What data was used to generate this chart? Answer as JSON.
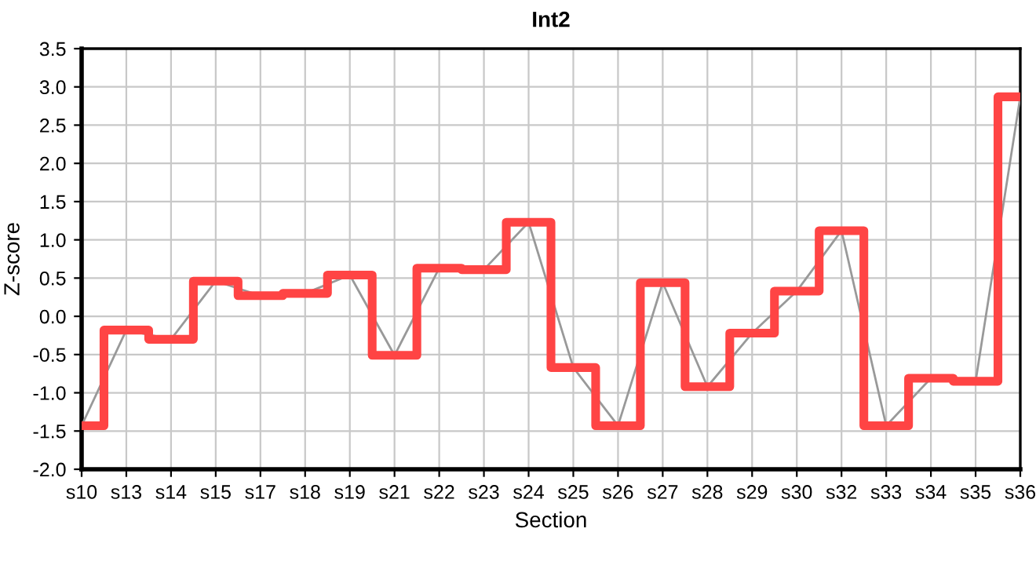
{
  "chart_data": {
    "type": "line",
    "title": "Int2",
    "xlabel": "Section",
    "ylabel": "Z-score",
    "categories": [
      "s10",
      "s13",
      "s14",
      "s15",
      "s17",
      "s18",
      "s19",
      "s21",
      "s22",
      "s23",
      "s24",
      "s25",
      "s26",
      "s27",
      "s28",
      "s29",
      "s30",
      "s32",
      "s33",
      "s34",
      "s35",
      "s36"
    ],
    "series": [
      {
        "color": "#999999",
        "values": [
          -1.43,
          -0.18,
          -0.3,
          0.46,
          0.27,
          0.3,
          0.54,
          -0.51,
          0.63,
          0.61,
          1.23,
          -0.67,
          -1.43,
          0.44,
          -0.92,
          -0.22,
          0.33,
          1.12,
          -1.43,
          -0.81,
          -0.85,
          2.87
        ]
      },
      {
        "type": "step",
        "color": "#ff4444",
        "values": [
          -1.43,
          -0.18,
          -0.3,
          0.46,
          0.27,
          0.3,
          0.54,
          -0.51,
          0.63,
          0.61,
          1.23,
          -0.67,
          -1.43,
          0.44,
          -0.92,
          -0.22,
          0.33,
          1.12,
          -1.43,
          -0.81,
          -0.85,
          2.87
        ]
      }
    ],
    "ylim": [
      -2.0,
      3.5
    ],
    "yticks": [
      {
        "value": -2.0,
        "label": "-2.0"
      },
      {
        "value": -1.5,
        "label": "-1.5"
      },
      {
        "value": -1.0,
        "label": "-1.0"
      },
      {
        "value": -0.5,
        "label": "-0.5"
      },
      {
        "value": 0.0,
        "label": "0.0"
      },
      {
        "value": 0.5,
        "label": "0.5"
      },
      {
        "value": 1.0,
        "label": "1.0"
      },
      {
        "value": 1.5,
        "label": "1.5"
      },
      {
        "value": 2.0,
        "label": "2.0"
      },
      {
        "value": 2.5,
        "label": "2.5"
      },
      {
        "value": 3.0,
        "label": "3.0"
      },
      {
        "value": 3.5,
        "label": "3.5"
      }
    ],
    "grid": true
  }
}
